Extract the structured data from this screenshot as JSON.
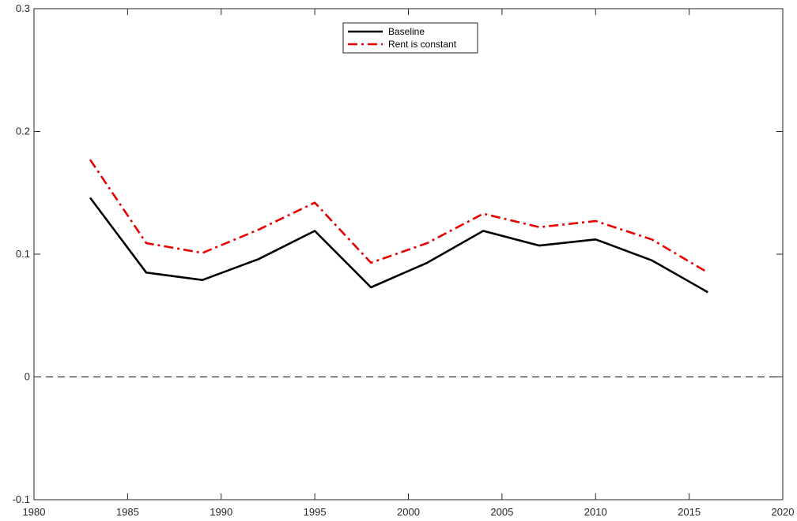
{
  "chart_data": {
    "type": "line",
    "xlim": [
      1980,
      2020
    ],
    "ylim": [
      -0.1,
      0.3
    ],
    "xticks": [
      1980,
      1985,
      1990,
      1995,
      2000,
      2005,
      2010,
      2015,
      2020
    ],
    "yticks": [
      -0.1,
      0,
      0.1,
      0.2,
      0.3
    ],
    "xtick_labels": [
      "1980",
      "1985",
      "1990",
      "1995",
      "2000",
      "2005",
      "2010",
      "2015",
      "2020"
    ],
    "ytick_labels": [
      "-0.1",
      "0",
      "0.1",
      "0.2",
      "0.3"
    ],
    "grid": false,
    "legend_position": "top-center",
    "reference_line": {
      "y": 0,
      "style": "dashed",
      "color": "#000000"
    },
    "x": [
      1983,
      1986,
      1989,
      1992,
      1995,
      1998,
      2001,
      2004,
      2007,
      2010,
      2013,
      2016
    ],
    "series": [
      {
        "name": "Baseline",
        "color": "#000000",
        "style": "solid",
        "values": [
          0.146,
          0.085,
          0.079,
          0.096,
          0.119,
          0.073,
          0.093,
          0.119,
          0.107,
          0.112,
          0.095,
          0.069
        ]
      },
      {
        "name": "Rent is constant",
        "color": "#e60000",
        "style": "dashdot",
        "values": [
          0.177,
          0.109,
          0.101,
          0.12,
          0.142,
          0.093,
          0.109,
          0.133,
          0.122,
          0.127,
          0.112,
          0.085
        ]
      }
    ]
  }
}
